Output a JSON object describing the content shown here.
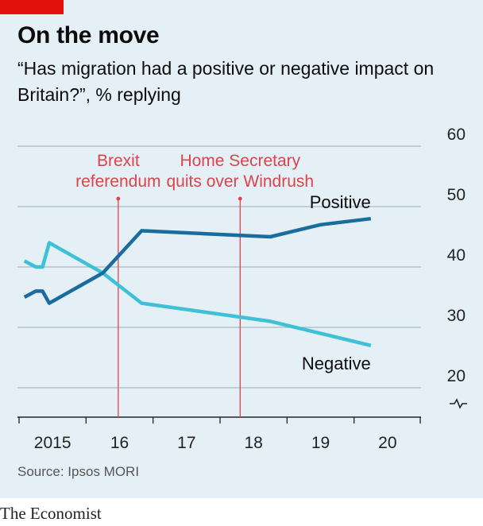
{
  "header": {
    "title": "On the move",
    "subtitle": "“Has migration had a positive or negative impact on Britain?”, % replying"
  },
  "footer": {
    "source": "Source: Ipsos MORI",
    "brand": "The Economist"
  },
  "colors": {
    "positive": "#1a6c9e",
    "negative": "#3ec1d6",
    "annotation": "#db444b",
    "grid": "#a9b8c1",
    "background": "#e4f0f6",
    "brand_red": "#e3120b"
  },
  "chart_data": {
    "type": "line",
    "title": "On the move",
    "subtitle": "“Has migration had a positive or negative impact on Britain?”, % replying",
    "x_tick_labels": [
      {
        "x": 2015.5,
        "label": "2015"
      },
      {
        "x": 2016.5,
        "label": "16"
      },
      {
        "x": 2017.5,
        "label": "17"
      },
      {
        "x": 2018.5,
        "label": "18"
      },
      {
        "x": 2019.5,
        "label": "19"
      },
      {
        "x": 2020.5,
        "label": "20"
      }
    ],
    "x_boundaries": [
      2015,
      2016,
      2017,
      2018,
      2019,
      2020,
      2021
    ],
    "xlim": [
      2015,
      2021
    ],
    "y_ticks": [
      20,
      30,
      40,
      50,
      60
    ],
    "ylim": [
      15,
      60
    ],
    "y_axis_broken": true,
    "grid": true,
    "series": [
      {
        "name": "Positive",
        "points": [
          [
            2015.08,
            35
          ],
          [
            2015.25,
            36
          ],
          [
            2015.35,
            36
          ],
          [
            2015.45,
            34
          ],
          [
            2016.25,
            39
          ],
          [
            2016.83,
            46
          ],
          [
            2018.75,
            45
          ],
          [
            2019.5,
            47
          ],
          [
            2020.25,
            48
          ]
        ]
      },
      {
        "name": "Negative",
        "points": [
          [
            2015.08,
            41
          ],
          [
            2015.25,
            40
          ],
          [
            2015.35,
            40
          ],
          [
            2015.45,
            44
          ],
          [
            2016.25,
            39
          ],
          [
            2016.83,
            34
          ],
          [
            2018.75,
            31
          ],
          [
            2019.5,
            29
          ],
          [
            2020.25,
            27
          ]
        ]
      }
    ],
    "annotations": [
      {
        "x": 2016.48,
        "lines": [
          "Brexit",
          "referendum"
        ]
      },
      {
        "x": 2018.3,
        "lines": [
          "Home Secretary",
          "quits over Windrush"
        ]
      }
    ]
  }
}
